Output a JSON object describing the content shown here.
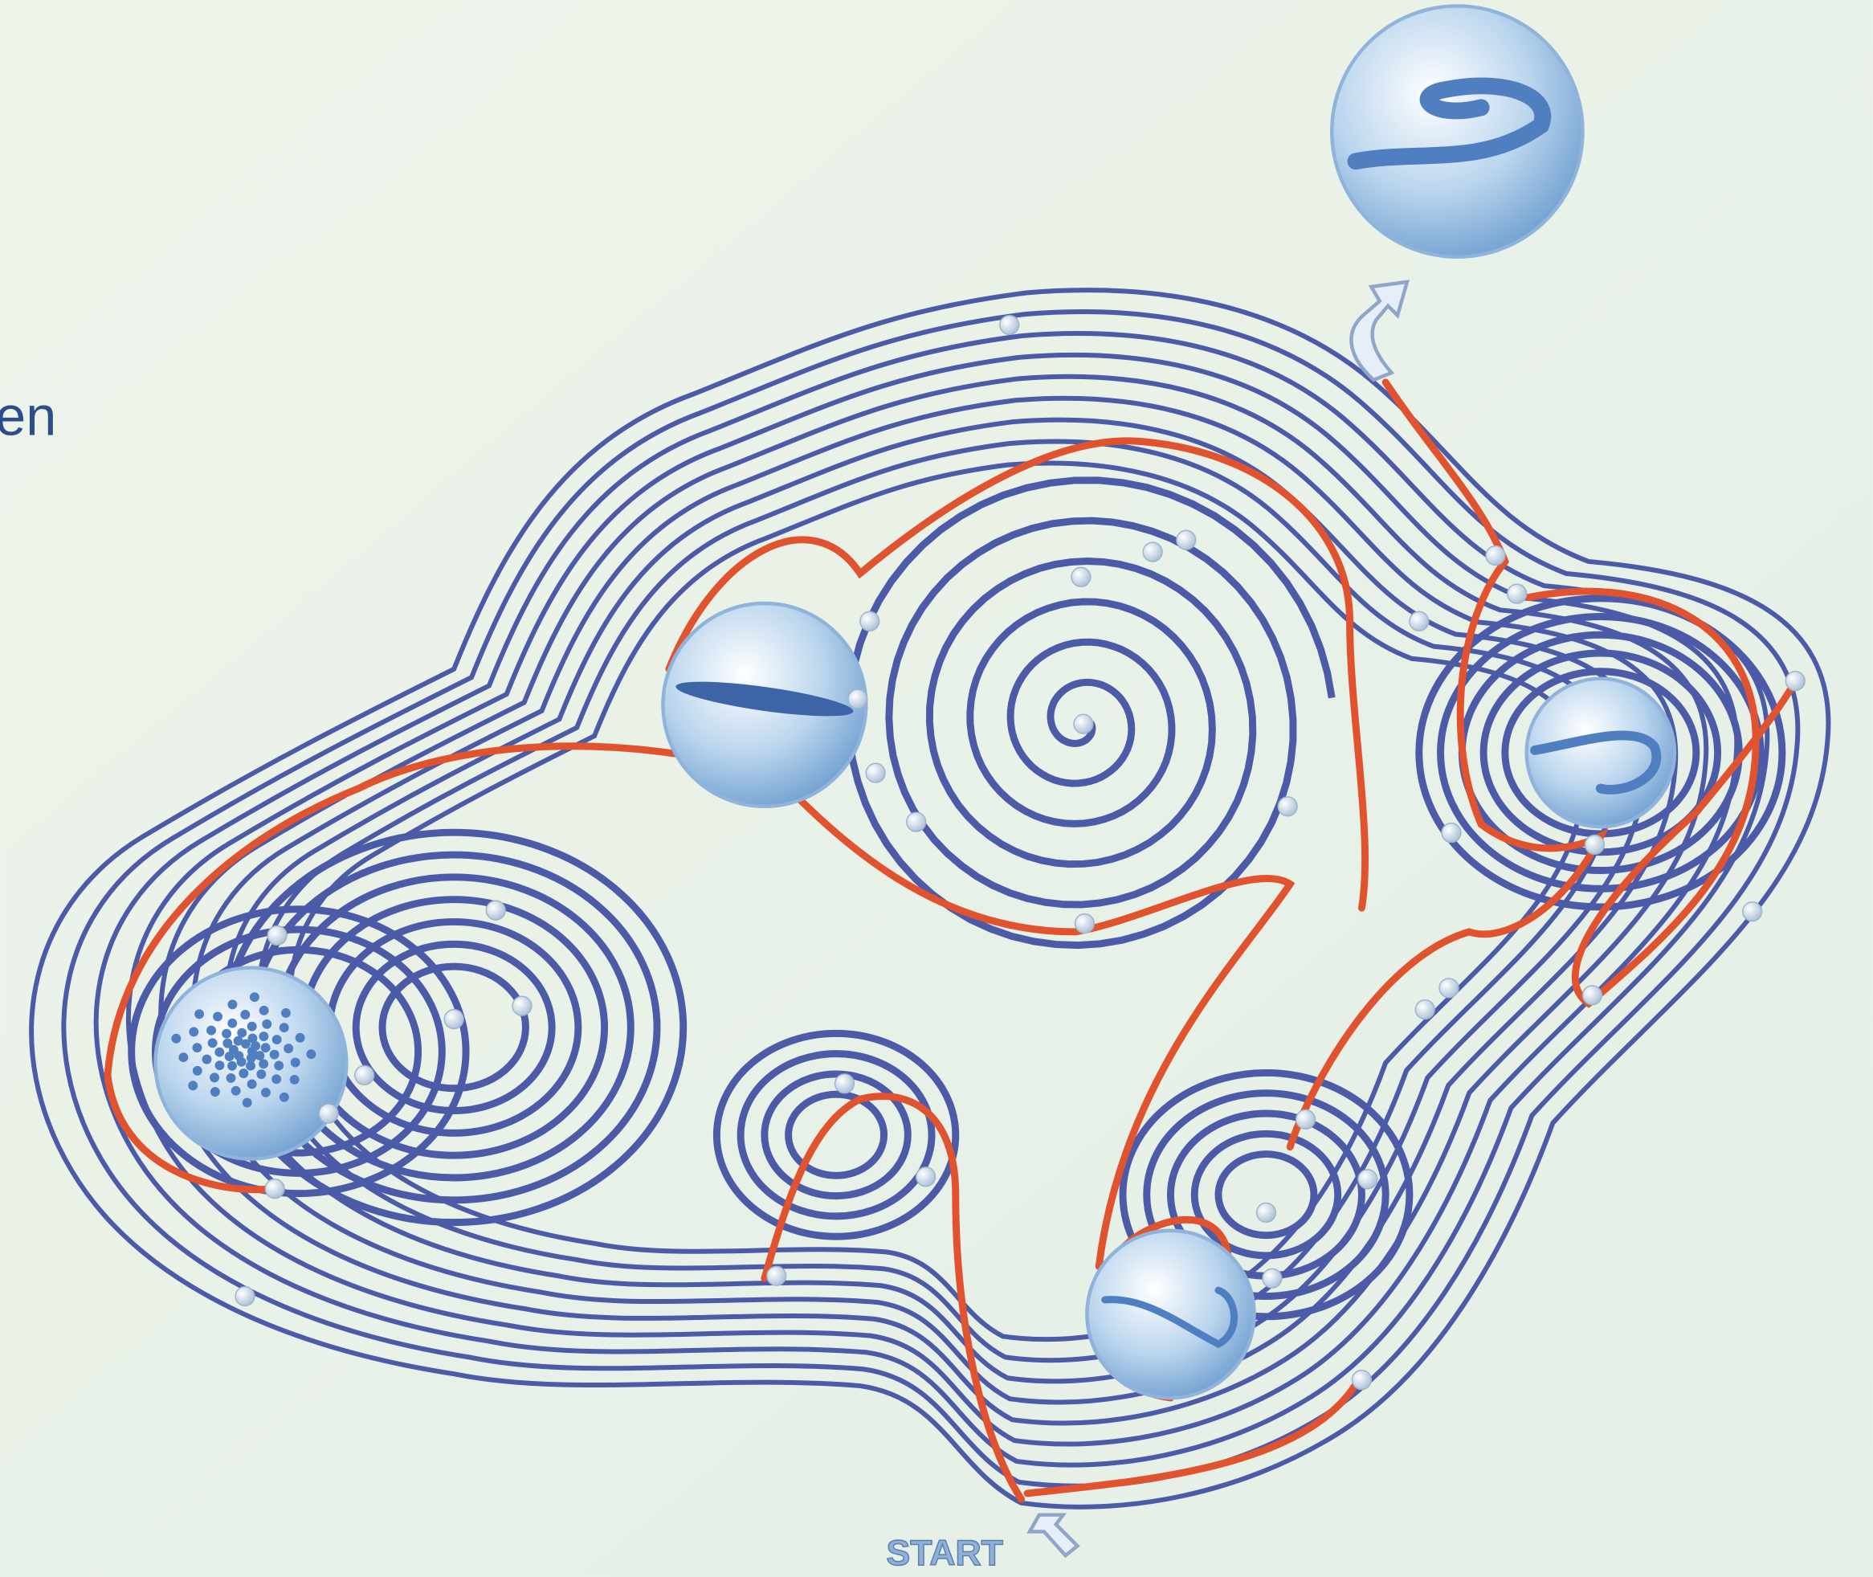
{
  "labels": {
    "edge_text": "en",
    "start": "START"
  }
}
